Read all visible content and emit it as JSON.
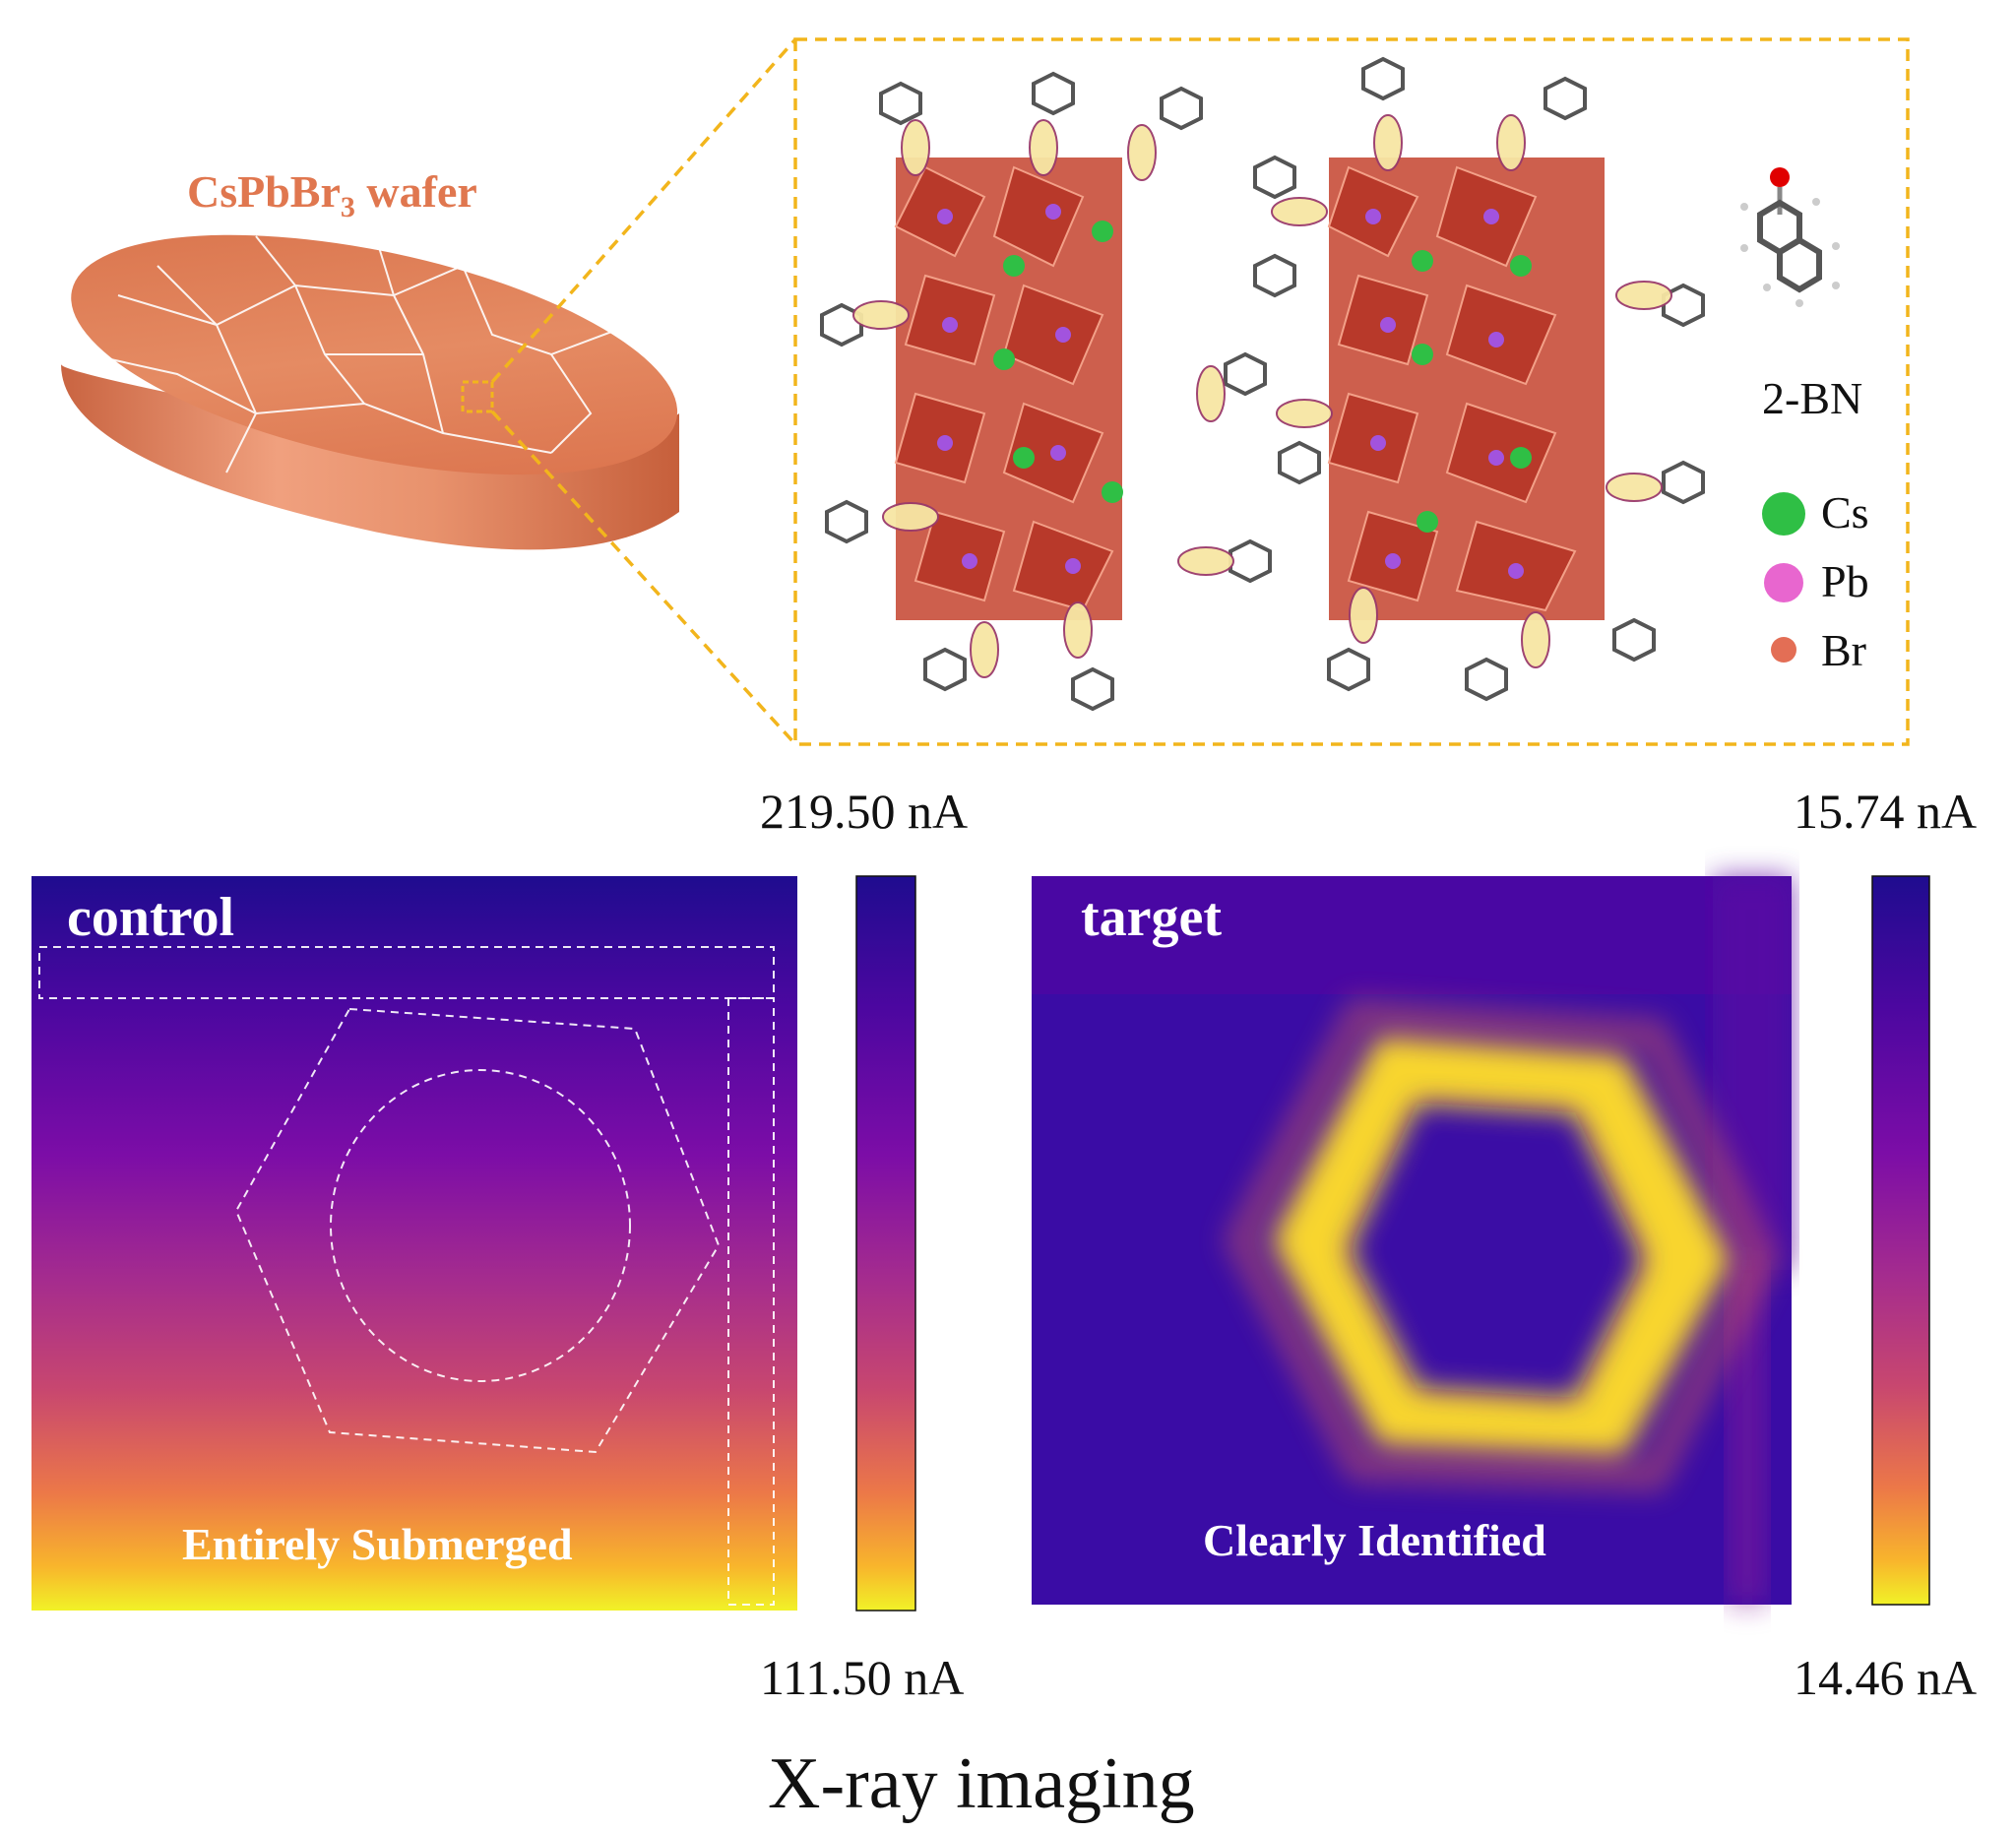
{
  "wafer": {
    "title_main": "CsPbBr",
    "title_sub": "3",
    "title_tail": " wafer"
  },
  "molecule": {
    "name": "2-BN"
  },
  "legend": {
    "items": [
      {
        "symbol": "Cs",
        "color": "#2fbf45"
      },
      {
        "symbol": "Pb",
        "color": "#e866cf"
      },
      {
        "symbol": "Br",
        "color": "#e36e55"
      }
    ]
  },
  "control_panel": {
    "title": "control",
    "caption": "Entirely Submerged",
    "scale_max": "219.50 nA",
    "scale_min": "111.50 nA"
  },
  "target_panel": {
    "title": "target",
    "caption": "Clearly Identified",
    "scale_max": "15.74 nA",
    "scale_min": "14.46 nA"
  },
  "footer": {
    "label": "X-ray imaging"
  },
  "colors": {
    "accent_dashed": "#f2b51c",
    "wafer": "#e08058",
    "plasma_dark": "#1f0c8f",
    "plasma_mid": "#b3338a",
    "plasma_light": "#f5f22a"
  }
}
